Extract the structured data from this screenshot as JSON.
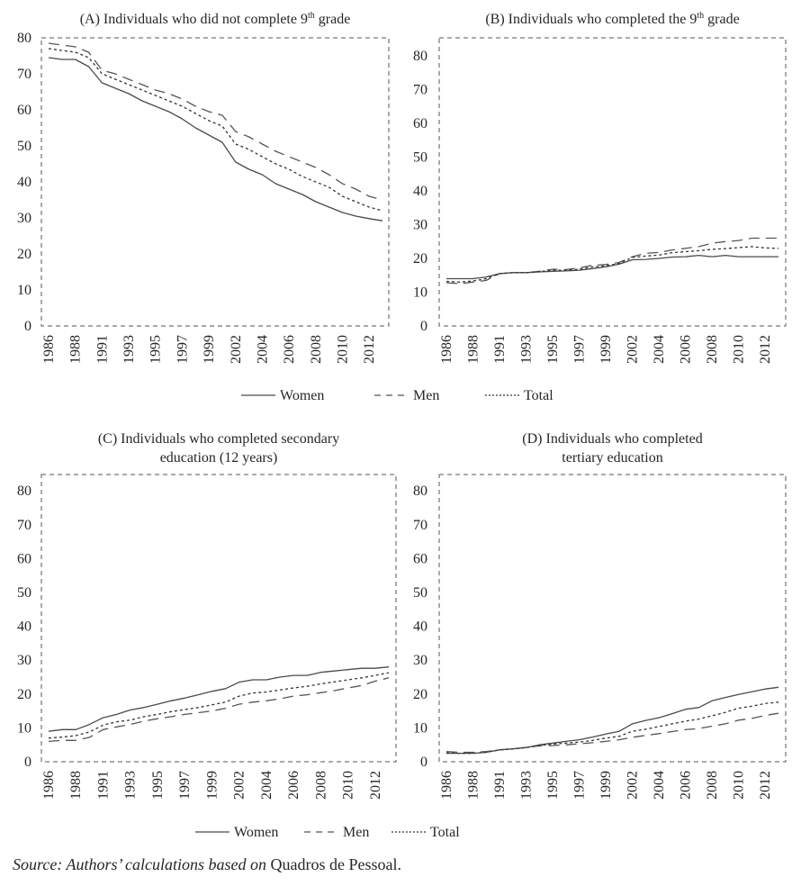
{
  "figure": {
    "legend": {
      "women": "Women",
      "men": "Men",
      "total": "Total"
    },
    "source_italic": "Source: Authors’ calculations based on",
    "source_plain": " Quadros de Pessoal."
  },
  "chart_data": [
    {
      "type": "line",
      "title": "(A) Individuals who did not complete 9",
      "title_sup": "th",
      "title_end": " grade",
      "title_lines": [
        "(A) Individuals who did not complete 9th grade"
      ],
      "xlabel": "",
      "ylabel": "",
      "ylim": [
        0,
        80
      ],
      "yticks": [
        0,
        10,
        20,
        30,
        40,
        50,
        60,
        70,
        80
      ],
      "x": [
        1986,
        1987,
        1988,
        1989,
        1991,
        1992,
        1993,
        1994,
        1995,
        1996,
        1997,
        1998,
        1999,
        2000,
        2002,
        2003,
        2004,
        2005,
        2006,
        2007,
        2008,
        2009,
        2010,
        2011,
        2012,
        2013
      ],
      "xtick_labels": [
        "1986",
        "1988",
        "1991",
        "1993",
        "1995",
        "1997",
        "1999",
        "2002",
        "2004",
        "2006",
        "2008",
        "2010",
        "2012"
      ],
      "series": [
        {
          "name": "Women",
          "style": "solid",
          "values": [
            74.5,
            74,
            74,
            72,
            67.5,
            66,
            64.5,
            62.5,
            61,
            59.5,
            57.5,
            55,
            53,
            51,
            45.5,
            43.5,
            42,
            39.5,
            38,
            36.5,
            34.5,
            33,
            31.5,
            30.5,
            29.8,
            29.2
          ]
        },
        {
          "name": "Men",
          "style": "dashed",
          "values": [
            78.5,
            78,
            77.5,
            76,
            71,
            70,
            68.5,
            67,
            65.5,
            64.5,
            63,
            61,
            59.5,
            58.5,
            54,
            52.5,
            50.5,
            48.5,
            47,
            45.5,
            44,
            42,
            39.5,
            38,
            36,
            35
          ]
        },
        {
          "name": "Total",
          "style": "dotted",
          "values": [
            77,
            76.5,
            76,
            74.5,
            70,
            68.5,
            67,
            65.5,
            64,
            62.5,
            61,
            59,
            57,
            55.5,
            50.5,
            49,
            47,
            45,
            43.5,
            41.5,
            40,
            38.5,
            36,
            34.5,
            33,
            32
          ]
        }
      ]
    },
    {
      "type": "line",
      "title": "(B) Individuals who completed the 9",
      "title_sup": "th",
      "title_end": " grade",
      "xlabel": "",
      "ylabel": "",
      "ylim": [
        0,
        85
      ],
      "yticks": [
        0,
        10,
        20,
        30,
        40,
        50,
        60,
        70,
        80
      ],
      "x": [
        1986,
        1987,
        1988,
        1989,
        1991,
        1992,
        1993,
        1994,
        1995,
        1996,
        1997,
        1998,
        1999,
        2000,
        2002,
        2003,
        2004,
        2005,
        2006,
        2007,
        2008,
        2009,
        2010,
        2011,
        2012,
        2013
      ],
      "xtick_labels": [
        "1986",
        "1988",
        "1991",
        "1993",
        "1995",
        "1997",
        "1999",
        "2002",
        "2004",
        "2006",
        "2008",
        "2010",
        "2012"
      ],
      "series": [
        {
          "name": "Women",
          "style": "solid",
          "values": [
            14,
            14,
            14,
            14.5,
            15.5,
            15.8,
            15.8,
            16,
            16.2,
            16.3,
            16.5,
            17,
            17.5,
            18.3,
            19.6,
            19.7,
            20,
            20.4,
            20.5,
            20.9,
            20.5,
            20.9,
            20.5,
            20.5,
            20.5,
            20.5
          ]
        },
        {
          "name": "Men",
          "style": "dashed",
          "values": [
            12.8,
            12.5,
            13,
            13.5,
            15.5,
            15.8,
            15.8,
            16.2,
            16.8,
            16.7,
            17.2,
            18,
            18.2,
            18.8,
            20.5,
            21.5,
            21.8,
            22.5,
            23,
            23.5,
            24.5,
            25,
            25.3,
            26,
            26,
            26
          ]
        },
        {
          "name": "Total",
          "style": "dotted",
          "values": [
            13.2,
            13,
            13.3,
            14,
            15.5,
            15.8,
            15.8,
            16.1,
            16.5,
            16.5,
            16.8,
            17.5,
            17.8,
            18.5,
            20.3,
            20.7,
            21,
            21.7,
            22,
            22.3,
            22.7,
            22.9,
            23.2,
            23.5,
            23.1,
            23
          ]
        }
      ]
    },
    {
      "type": "line",
      "title_lines": [
        "(C) Individuals who completed secondary",
        "education (12 years)"
      ],
      "xlabel": "",
      "ylabel": "",
      "ylim": [
        0,
        85
      ],
      "yticks": [
        0,
        10,
        20,
        30,
        40,
        50,
        60,
        70,
        80
      ],
      "x": [
        1986,
        1987,
        1988,
        1989,
        1991,
        1992,
        1993,
        1994,
        1995,
        1996,
        1997,
        1998,
        1999,
        2000,
        2002,
        2003,
        2004,
        2005,
        2006,
        2007,
        2008,
        2009,
        2010,
        2011,
        2012,
        2013
      ],
      "xtick_labels": [
        "1986",
        "1988",
        "1991",
        "1993",
        "1995",
        "1997",
        "1999",
        "2002",
        "2004",
        "2006",
        "2008",
        "2010",
        "2012"
      ],
      "series": [
        {
          "name": "Women",
          "style": "solid",
          "values": [
            9,
            9.5,
            9.5,
            11,
            13,
            14,
            15.3,
            16,
            17,
            18,
            18.8,
            19.8,
            20.8,
            21.6,
            23.5,
            24.2,
            24.2,
            25,
            25.5,
            25.5,
            26.4,
            26.8,
            27.2,
            27.6,
            27.6,
            28
          ]
        },
        {
          "name": "Men",
          "style": "dashed",
          "values": [
            6,
            6.3,
            6.3,
            7.2,
            9.5,
            10.3,
            11,
            12,
            12.7,
            13.3,
            14,
            14.5,
            15,
            15.8,
            17,
            17.6,
            18,
            18.6,
            19.4,
            19.8,
            20.4,
            21,
            21.8,
            22.5,
            23.8,
            24.8
          ]
        },
        {
          "name": "Total",
          "style": "dotted",
          "values": [
            7,
            7.3,
            7.7,
            8.8,
            10.8,
            11.8,
            12.3,
            13.3,
            14,
            14.8,
            15.4,
            16,
            16.8,
            17.6,
            19.4,
            20.3,
            20.6,
            21.2,
            21.8,
            22.3,
            23,
            23.6,
            24.2,
            24.8,
            25.5,
            26.3
          ]
        }
      ]
    },
    {
      "type": "line",
      "title_lines": [
        "(D) Individuals who completed",
        "tertiary education"
      ],
      "xlabel": "",
      "ylabel": "",
      "ylim": [
        0,
        85
      ],
      "yticks": [
        0,
        10,
        20,
        30,
        40,
        50,
        60,
        70,
        80
      ],
      "x": [
        1986,
        1987,
        1988,
        1989,
        1991,
        1992,
        1993,
        1994,
        1995,
        1996,
        1997,
        1998,
        1999,
        2000,
        2002,
        2003,
        2004,
        2005,
        2006,
        2007,
        2008,
        2009,
        2010,
        2011,
        2012,
        2013
      ],
      "xtick_labels": [
        "1986",
        "1988",
        "1991",
        "1993",
        "1995",
        "1997",
        "1999",
        "2002",
        "2004",
        "2006",
        "2008",
        "2010",
        "2012"
      ],
      "series": [
        {
          "name": "Women",
          "style": "solid",
          "values": [
            2.5,
            2.5,
            2.5,
            2.8,
            3.5,
            3.8,
            4.2,
            5,
            5.5,
            6,
            6.5,
            7.3,
            8.2,
            9,
            11.2,
            12.2,
            13,
            14.2,
            15.5,
            16,
            18,
            19,
            19.9,
            20.7,
            21.5,
            22
          ]
        },
        {
          "name": "Men",
          "style": "dashed",
          "values": [
            3,
            2.8,
            2.8,
            3,
            3.5,
            3.8,
            4.2,
            4.7,
            4.8,
            5,
            5.3,
            5.6,
            6,
            6.5,
            7.2,
            7.8,
            8.3,
            8.9,
            9.5,
            9.8,
            10.5,
            11.2,
            12.3,
            12.8,
            13.7,
            14.3
          ]
        },
        {
          "name": "Total",
          "style": "dotted",
          "values": [
            2.6,
            2.5,
            2.5,
            2.8,
            3.5,
            3.8,
            4.2,
            4.8,
            5.2,
            5.5,
            5.8,
            6.3,
            7,
            7.5,
            9,
            9.6,
            10.4,
            11.2,
            12,
            12.6,
            13.6,
            14.6,
            15.8,
            16.4,
            17.2,
            17.6
          ]
        }
      ]
    }
  ]
}
